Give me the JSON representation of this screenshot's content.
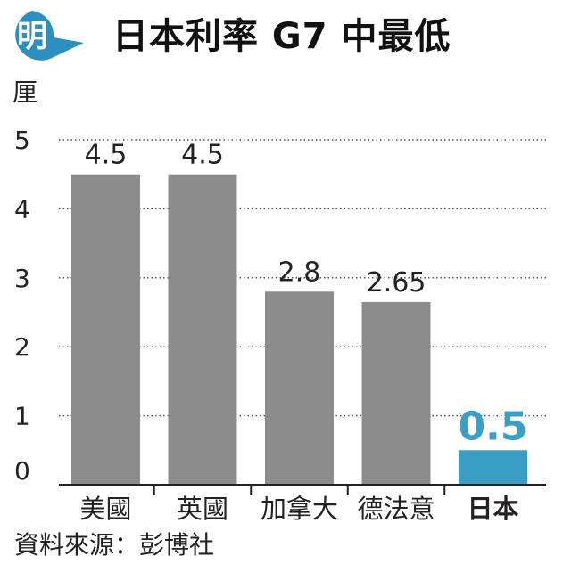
{
  "logo": {
    "glyph": "明"
  },
  "title": "日本利率 G7 中最低",
  "source": "資料來源：彭博社",
  "colors": {
    "bar": "#8c8c8c",
    "highlight": "#3a9fc4",
    "logo": "#2b8fbf",
    "rule": "#bdbdbd",
    "text": "#222222"
  },
  "chart_data": {
    "type": "bar",
    "categories": [
      "美國",
      "英國",
      "加拿大",
      "德法意",
      "日本"
    ],
    "values": [
      4.5,
      4.5,
      2.8,
      2.65,
      0.5
    ],
    "value_labels": [
      "4.5",
      "4.5",
      "2.8",
      "2.65",
      "0.5"
    ],
    "highlight_index": 4,
    "ylabel": "厘",
    "yticks": [
      0,
      1,
      2,
      3,
      4,
      5
    ],
    "ylim": [
      0,
      5
    ],
    "grid": true
  }
}
